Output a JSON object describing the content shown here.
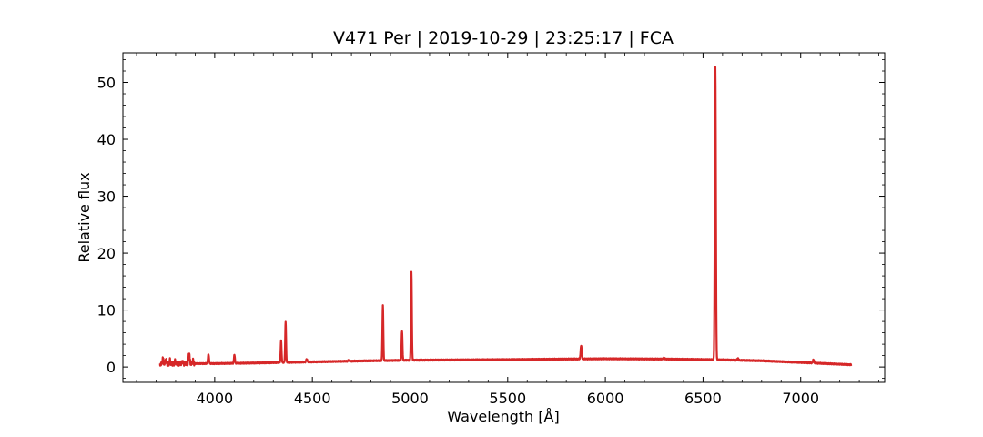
{
  "chart_data": {
    "type": "line",
    "title": "V471 Per | 2019-10-29 | 23:25:17 | FCA",
    "xlabel": "Wavelength [Å]",
    "ylabel": "Relative flux",
    "xlim": [
      3530,
      7430
    ],
    "ylim": [
      -2.7,
      55.2
    ],
    "xticks": [
      4000,
      4500,
      5000,
      5500,
      6000,
      6500,
      7000
    ],
    "yticks": [
      0,
      10,
      20,
      30,
      40,
      50
    ],
    "grid": false,
    "line_color": "#d62728",
    "series": [
      {
        "continuum": [
          [
            3720,
            0.5
          ],
          [
            3800,
            0.6
          ],
          [
            4000,
            0.6
          ],
          [
            4200,
            0.7
          ],
          [
            4500,
            0.9
          ],
          [
            4800,
            1.1
          ],
          [
            5000,
            1.2
          ],
          [
            5500,
            1.3
          ],
          [
            5800,
            1.4
          ],
          [
            6000,
            1.45
          ],
          [
            6300,
            1.4
          ],
          [
            6550,
            1.3
          ],
          [
            6800,
            1.1
          ],
          [
            7000,
            0.8
          ],
          [
            7260,
            0.4
          ]
        ],
        "peaks": [
          {
            "x": 3735,
            "y": 1.5,
            "w": 6
          },
          {
            "x": 3750,
            "y": 1.3,
            "w": 6
          },
          {
            "x": 3771,
            "y": 1.2,
            "w": 5
          },
          {
            "x": 3798,
            "y": 1.1,
            "w": 5
          },
          {
            "x": 3835,
            "y": 1.0,
            "w": 5
          },
          {
            "x": 3869,
            "y": 2.5,
            "w": 6
          },
          {
            "x": 3889,
            "y": 1.2,
            "w": 5
          },
          {
            "x": 3968,
            "y": 2.2,
            "w": 6
          },
          {
            "x": 4101,
            "y": 2.2,
            "w": 5
          },
          {
            "x": 4340,
            "y": 4.6,
            "w": 5
          },
          {
            "x": 4363,
            "y": 7.9,
            "w": 5
          },
          {
            "x": 4471,
            "y": 1.4,
            "w": 6
          },
          {
            "x": 4686,
            "y": 1.2,
            "w": 6
          },
          {
            "x": 4861,
            "y": 10.8,
            "w": 5
          },
          {
            "x": 4959,
            "y": 6.3,
            "w": 5
          },
          {
            "x": 5007,
            "y": 16.8,
            "w": 5
          },
          {
            "x": 5876,
            "y": 3.8,
            "w": 6
          },
          {
            "x": 6300,
            "y": 1.6,
            "w": 6
          },
          {
            "x": 6563,
            "y": 52.8,
            "w": 6
          },
          {
            "x": 6678,
            "y": 1.5,
            "w": 7
          },
          {
            "x": 7065,
            "y": 1.3,
            "w": 6
          }
        ]
      }
    ]
  }
}
